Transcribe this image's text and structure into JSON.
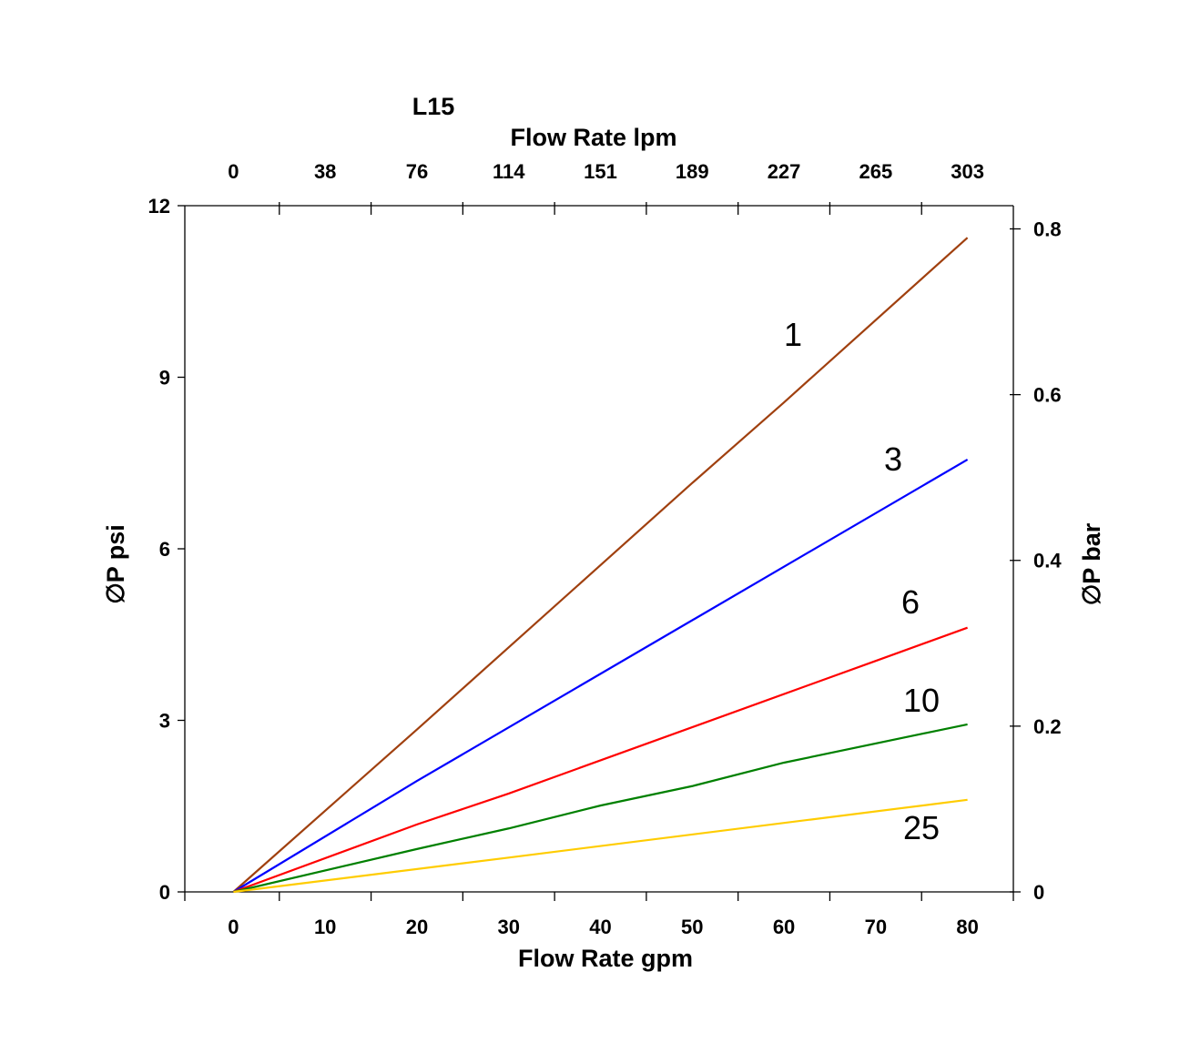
{
  "chart_data": {
    "type": "line",
    "title": "L15",
    "xlabel": "Flow Rate gpm",
    "x2label": "Flow Rate lpm",
    "ylabel": "∅P psi",
    "y2label": "∅P bar",
    "xlim": [
      -5.3,
      85
    ],
    "ylim": [
      0,
      12
    ],
    "y2lim": [
      0,
      0.828
    ],
    "xticks": [
      "0",
      "10",
      "20",
      "30",
      "40",
      "50",
      "60",
      "70",
      "80"
    ],
    "x2ticks": [
      "0",
      "38",
      "76",
      "114",
      "151",
      "189",
      "227",
      "265",
      "303"
    ],
    "yticks": [
      "0",
      "3",
      "6",
      "9",
      "12"
    ],
    "y2ticks": [
      "0",
      "0.2",
      "0.4",
      "0.6",
      "0.8"
    ],
    "grid": false,
    "series": [
      {
        "name": "1",
        "color": "#a0400f",
        "x": [
          0,
          20,
          50,
          60,
          80
        ],
        "y": [
          0,
          2.84,
          7.15,
          8.56,
          11.44
        ]
      },
      {
        "name": "3",
        "color": "#0000ff",
        "x": [
          0,
          20,
          80
        ],
        "y": [
          0,
          1.94,
          7.56
        ]
      },
      {
        "name": "6",
        "color": "#ff0000",
        "x": [
          0,
          20,
          30,
          70,
          80
        ],
        "y": [
          0,
          1.18,
          1.72,
          4.04,
          4.62
        ]
      },
      {
        "name": "10",
        "color": "#008000",
        "x": [
          0,
          20,
          30,
          40,
          50,
          60,
          80
        ],
        "y": [
          0,
          0.75,
          1.11,
          1.51,
          1.85,
          2.26,
          2.93
        ]
      },
      {
        "name": "25",
        "color": "#ffcc00",
        "x": [
          0,
          30,
          80
        ],
        "y": [
          0,
          0.6,
          1.61
        ]
      }
    ]
  }
}
